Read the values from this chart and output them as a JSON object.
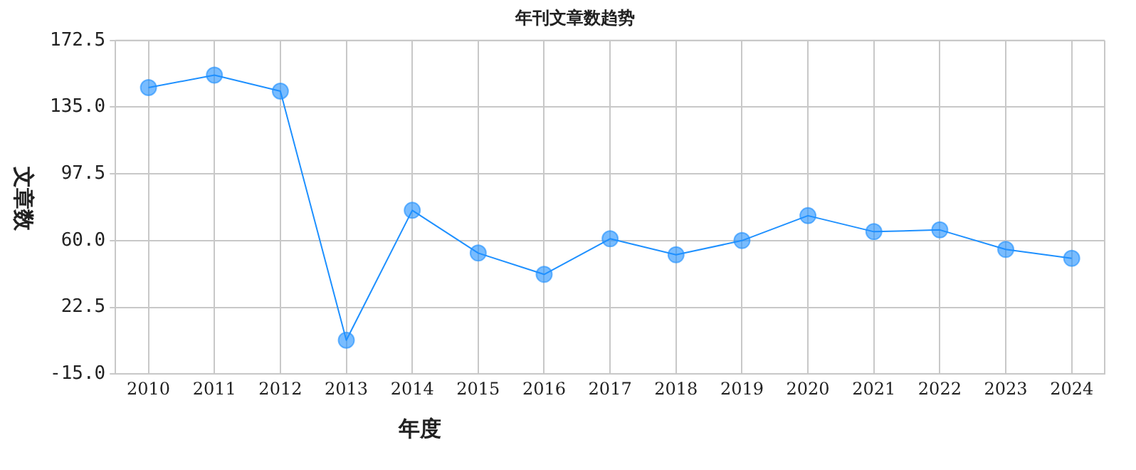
{
  "chart_data": {
    "type": "line",
    "title": "年刊文章数趋势",
    "xlabel": "年度",
    "ylabel": "文章数",
    "categories": [
      "2010",
      "2011",
      "2012",
      "2013",
      "2014",
      "2015",
      "2016",
      "2017",
      "2018",
      "2019",
      "2020",
      "2021",
      "2022",
      "2023",
      "2024"
    ],
    "series": [
      {
        "color": "#1e90ff",
        "values": [
          146,
          153,
          144,
          4,
          77,
          53,
          41,
          61,
          52,
          60,
          74,
          65,
          66,
          55,
          50
        ]
      }
    ],
    "ylim": [
      -15,
      172.5
    ],
    "yticks": [
      {
        "value": -15,
        "label": "-15.0"
      },
      {
        "value": 22.5,
        "label": "22.5"
      },
      {
        "value": 60,
        "label": "60.0"
      },
      {
        "value": 97.5,
        "label": "97.5"
      },
      {
        "value": 135,
        "label": "135.0"
      },
      {
        "value": 172.5,
        "label": "172.5"
      }
    ],
    "grid": true,
    "legend": false,
    "marker": "circle",
    "line_style": "solid"
  }
}
